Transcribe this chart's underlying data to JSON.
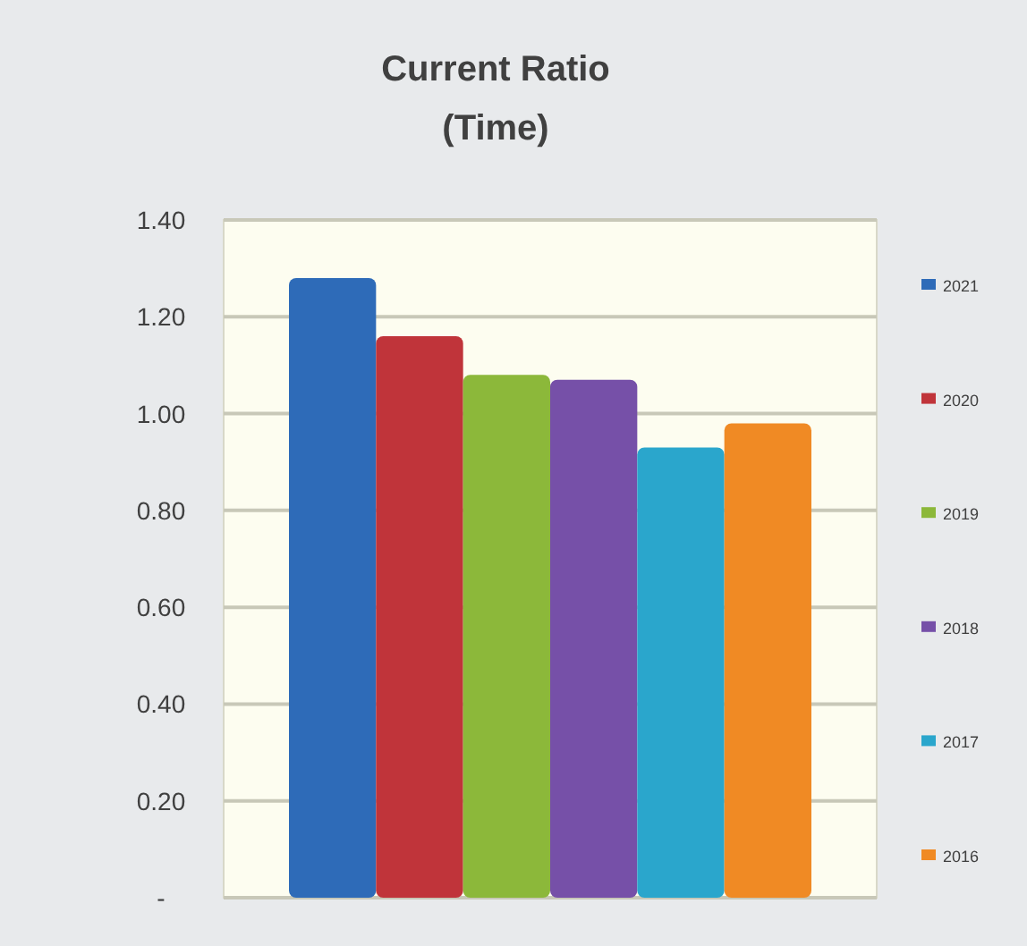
{
  "chart_data": {
    "type": "bar",
    "title": "Current Ratio",
    "subtitle": "(Time)",
    "categories": [
      null
    ],
    "series": [
      {
        "name": "2021",
        "color": "#2e6bb8",
        "values": [
          1.28
        ]
      },
      {
        "name": "2020",
        "color": "#c0343a",
        "values": [
          1.16
        ]
      },
      {
        "name": "2019",
        "color": "#8cb83a",
        "values": [
          1.08
        ]
      },
      {
        "name": "2018",
        "color": "#7650a8",
        "values": [
          1.07
        ]
      },
      {
        "name": "2017",
        "color": "#2aa6cc",
        "values": [
          0.93
        ]
      },
      {
        "name": "2016",
        "color": "#f08a24",
        "values": [
          0.98
        ]
      }
    ],
    "ylim": [
      0,
      1.4
    ],
    "yticks": [
      {
        "value": 0,
        "label": "-"
      },
      {
        "value": 0.2,
        "label": "0.20"
      },
      {
        "value": 0.4,
        "label": "0.40"
      },
      {
        "value": 0.6,
        "label": "0.60"
      },
      {
        "value": 0.8,
        "label": "0.80"
      },
      {
        "value": 1,
        "label": "1.00"
      },
      {
        "value": 1.2,
        "label": "1.20"
      },
      {
        "value": 1.4,
        "label": "1.40"
      }
    ],
    "grid": "y",
    "legend": "right"
  }
}
